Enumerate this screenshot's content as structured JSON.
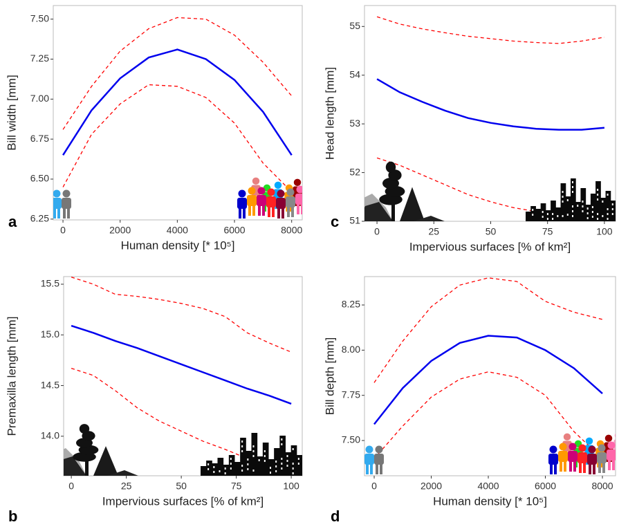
{
  "chart_data": [
    {
      "type": "line",
      "panel_label": "a",
      "x_label": "Human density [* 10⁵]",
      "y_label": "Bill width [mm]",
      "x": [
        0,
        1000,
        2000,
        3000,
        4000,
        5000,
        6000,
        7000,
        8000
      ],
      "series": [
        {
          "color": "#0000ee",
          "style": "solid",
          "values": [
            6.65,
            6.93,
            7.13,
            7.26,
            7.31,
            7.25,
            7.12,
            6.92,
            6.65
          ]
        },
        {
          "color": "#ff0000",
          "style": "dashed",
          "values": [
            6.81,
            7.08,
            7.3,
            7.44,
            7.51,
            7.5,
            7.4,
            7.23,
            7.02
          ]
        },
        {
          "color": "#ff0000",
          "style": "dashed",
          "values": [
            6.45,
            6.78,
            6.97,
            7.09,
            7.08,
            7.01,
            6.85,
            6.6,
            6.42
          ]
        }
      ],
      "xlim": [
        -340,
        8370
      ],
      "ylim": [
        6.245,
        7.585
      ],
      "xticks": [
        0,
        2000,
        4000,
        6000,
        8000
      ],
      "yticks": [
        6.25,
        {
          "value": 6.5,
          "label": "6.50"
        },
        6.75,
        {
          "value": 7,
          "label": "7.00"
        },
        7.25,
        {
          "value": 7.5,
          "label": "7.50"
        }
      ],
      "grid": false
    },
    {
      "type": "line",
      "panel_label": "c",
      "x_label": "Impervious surfaces [% of km²]",
      "y_label": "Head length [mm]",
      "x": [
        0,
        10,
        20,
        30,
        40,
        50,
        60,
        70,
        80,
        90,
        100
      ],
      "series": [
        {
          "color": "#0000ee",
          "style": "solid",
          "values": [
            53.92,
            53.65,
            53.45,
            53.27,
            53.12,
            53.02,
            52.95,
            52.9,
            52.88,
            52.88,
            52.92
          ]
        },
        {
          "color": "#ff0000",
          "style": "dashed",
          "values": [
            55.2,
            55.05,
            54.95,
            54.87,
            54.8,
            54.75,
            54.7,
            54.67,
            54.65,
            54.7,
            54.78
          ]
        },
        {
          "color": "#ff0000",
          "style": "dashed",
          "values": [
            52.3,
            52.15,
            51.95,
            51.75,
            51.55,
            51.4,
            51.28,
            51.2,
            51.1,
            51.05,
            51.0
          ]
        }
      ],
      "xlim": [
        -5.5,
        104.9
      ],
      "ylim": [
        51,
        55.43
      ],
      "xticks": [
        0,
        25,
        50,
        75,
        100
      ],
      "yticks": [
        51,
        52,
        53,
        54,
        55
      ],
      "grid": false
    },
    {
      "type": "line",
      "panel_label": "b",
      "x_label": "Impervious surfaces [% of km²]",
      "y_label": "Premaxilla length [mm]",
      "x": [
        0,
        10,
        20,
        30,
        40,
        50,
        60,
        70,
        80,
        90,
        100
      ],
      "series": [
        {
          "color": "#0000ee",
          "style": "solid",
          "values": [
            15.09,
            15.02,
            14.94,
            14.87,
            14.79,
            14.71,
            14.63,
            14.55,
            14.47,
            14.4,
            14.32
          ]
        },
        {
          "color": "#ff0000",
          "style": "dashed",
          "values": [
            15.57,
            15.5,
            15.4,
            15.38,
            15.35,
            15.31,
            15.26,
            15.18,
            15.02,
            14.92,
            14.83
          ]
        },
        {
          "color": "#ff0000",
          "style": "dashed",
          "values": [
            14.67,
            14.6,
            14.45,
            14.28,
            14.15,
            14.05,
            13.95,
            13.87,
            13.78,
            13.72,
            13.7
          ]
        }
      ],
      "xlim": [
        -3.5,
        105
      ],
      "ylim": [
        13.61,
        15.575
      ],
      "xticks": [
        0,
        25,
        50,
        75,
        100
      ],
      "yticks": [
        {
          "value": 14,
          "label": "14.0"
        },
        14.5,
        {
          "value": 15,
          "label": "15.0"
        },
        15.5
      ],
      "grid": false
    },
    {
      "type": "line",
      "panel_label": "d",
      "x_label": "Human density [* 10⁵]",
      "y_label": "Bill depth [mm]",
      "x": [
        0,
        1000,
        2000,
        3000,
        4000,
        5000,
        6000,
        7000,
        8000
      ],
      "series": [
        {
          "color": "#0000ee",
          "style": "solid",
          "values": [
            7.59,
            7.79,
            7.94,
            8.04,
            8.08,
            8.07,
            8.0,
            7.9,
            7.76
          ]
        },
        {
          "color": "#ff0000",
          "style": "dashed",
          "values": [
            7.82,
            8.05,
            8.24,
            8.36,
            8.4,
            8.38,
            8.27,
            8.21,
            8.17
          ]
        },
        {
          "color": "#ff0000",
          "style": "dashed",
          "values": [
            7.4,
            7.58,
            7.74,
            7.84,
            7.88,
            7.85,
            7.75,
            7.55,
            7.4
          ]
        }
      ],
      "xlim": [
        -340,
        8460
      ],
      "ylim": [
        7.305,
        8.407
      ],
      "xticks": [
        0,
        2000,
        4000,
        6000,
        8000
      ],
      "yticks": [
        {
          "value": 7.5,
          "label": "7.50"
        },
        7.75,
        {
          "value": 8,
          "label": "8.00"
        },
        8.25
      ],
      "grid": false
    }
  ]
}
